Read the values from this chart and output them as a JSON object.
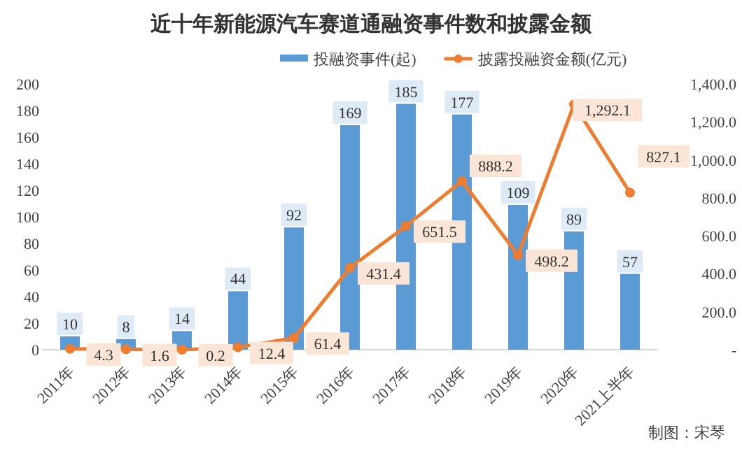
{
  "chart_data": {
    "type": "bar",
    "title": "近十年新能源汽车赛道通融资事件数和披露金额",
    "categories": [
      "2011年",
      "2012年",
      "2013年",
      "2014年",
      "2015年",
      "2016年",
      "2017年",
      "2018年",
      "2019年",
      "2020年",
      "2021上半年"
    ],
    "series": [
      {
        "name": "投融资事件(起)",
        "color": "#5b9bd5",
        "values": [
          10,
          8,
          14,
          44,
          92,
          169,
          185,
          177,
          109,
          89,
          57
        ],
        "value_labels": [
          "10",
          "8",
          "14",
          "44",
          "92",
          "169",
          "185",
          "177",
          "109",
          "89",
          "57"
        ]
      },
      {
        "name": "披露投融资金额(亿元)",
        "type": "line",
        "axis": "y2",
        "color": "#ed7d31",
        "marker": "circle",
        "values": [
          4.3,
          1.6,
          0.2,
          12.4,
          61.4,
          431.4,
          651.5,
          888.2,
          498.2,
          1292.1,
          827.1
        ],
        "value_labels": [
          "4.3",
          "1.6",
          "0.2",
          "12.4",
          "61.4",
          "431.4",
          "651.5",
          "888.2",
          "498.2",
          "1,292.1",
          "827.1"
        ]
      }
    ],
    "ylim": [
      0,
      200
    ],
    "yticks": [
      0,
      20,
      40,
      60,
      80,
      100,
      120,
      140,
      160,
      180,
      200
    ],
    "y2lim": [
      0,
      1400
    ],
    "y2ticks": [
      {
        "value": 0,
        "label": "-"
      },
      {
        "value": 200,
        "label": "200.0"
      },
      {
        "value": 400,
        "label": "400.0"
      },
      {
        "value": 600,
        "label": "600.0"
      },
      {
        "value": 800,
        "label": "800.0"
      },
      {
        "value": 1000,
        "label": "1,000.0"
      },
      {
        "value": 1200,
        "label": "1,200.0"
      },
      {
        "value": 1400,
        "label": "1,400.0"
      }
    ],
    "grid": false,
    "legend": "top",
    "annotations": [
      "制图：宋琴"
    ]
  }
}
